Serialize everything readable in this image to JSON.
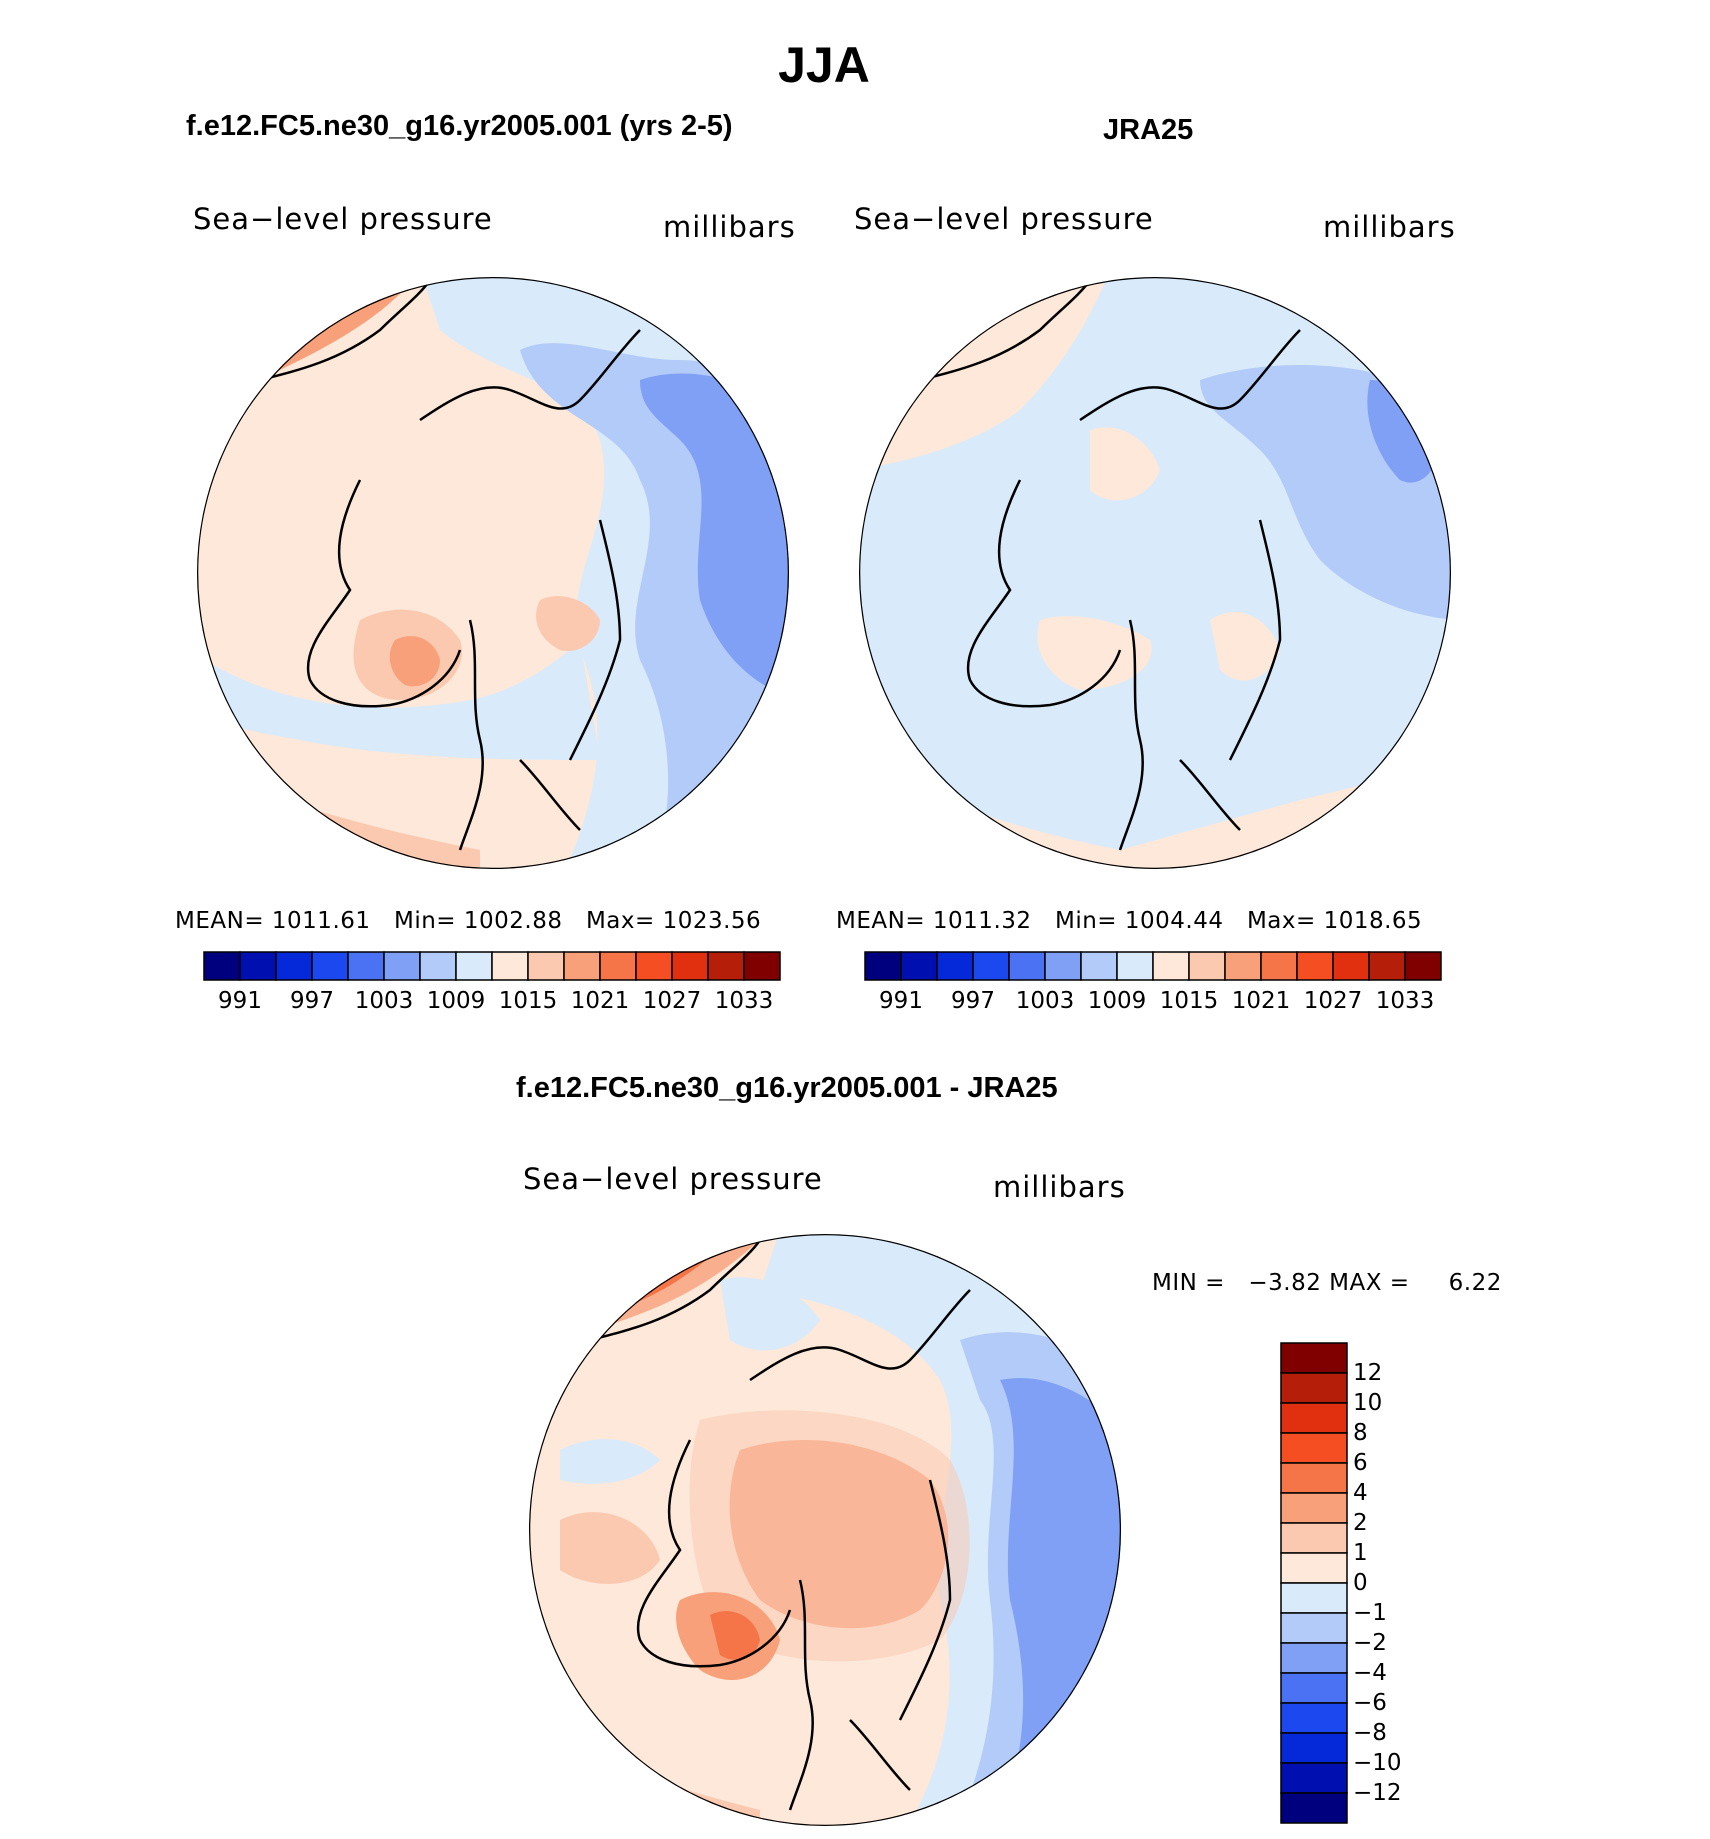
{
  "main_title": "JJA",
  "panels": [
    {
      "id": "model",
      "title": "f.e12.FC5.ne30_g16.yr2005.001 (yrs 2-5)",
      "left_label": "Sea−level pressure",
      "right_label": "millibars",
      "stats": {
        "mean_label": "MEAN=",
        "mean": "1011.61",
        "min_label": "Min=",
        "min": "1002.88",
        "max_label": "Max=",
        "max": "1023.56"
      }
    },
    {
      "id": "obs",
      "title": "JRA25",
      "left_label": "Sea−level pressure",
      "right_label": "millibars",
      "stats": {
        "mean_label": "MEAN=",
        "mean": "1011.32",
        "min_label": "Min=",
        "min": "1004.44",
        "max_label": "Max=",
        "max": "1018.65"
      }
    },
    {
      "id": "diff",
      "title": "f.e12.FC5.ne30_g16.yr2005.001 - JRA25",
      "left_label": "Sea−level pressure",
      "right_label": "millibars",
      "stats": {
        "min_label": "MIN =",
        "min": "−3.82",
        "max_label": "MAX =",
        "max": "6.22"
      }
    }
  ],
  "colorbar_abs": {
    "colors": [
      "#00007f",
      "#0010b0",
      "#0528d8",
      "#1c48f0",
      "#4a72f2",
      "#7fa0f5",
      "#b3cbf8",
      "#d9eafb",
      "#fde8d9",
      "#fbc9b0",
      "#f7a07a",
      "#f57448",
      "#f44e22",
      "#e03010",
      "#b51e08",
      "#800000"
    ],
    "labels": [
      "991",
      "997",
      "1003",
      "1009",
      "1015",
      "1021",
      "1027",
      "1033"
    ]
  },
  "colorbar_diff": {
    "colors": [
      "#00007f",
      "#0010b0",
      "#0528d8",
      "#1c48f0",
      "#4a72f2",
      "#7fa0f5",
      "#b3cbf8",
      "#d9eafb",
      "#fde8d9",
      "#fbc9b0",
      "#f7a07a",
      "#f57448",
      "#f44e22",
      "#e03010",
      "#b51e08",
      "#800000"
    ],
    "labels": [
      "12",
      "10",
      "8",
      "6",
      "4",
      "2",
      "1",
      "0",
      "−1",
      "−2",
      "−4",
      "−6",
      "−8",
      "−10",
      "−12"
    ]
  },
  "map_colors": {
    "strong_red": "#f57448",
    "red": "#f7a07a",
    "light_red": "#fbc9b0",
    "pale_red": "#fde8d9",
    "pale_blue": "#d9eafb",
    "light_blue": "#b3cbf8",
    "blue": "#7fa0f5"
  }
}
